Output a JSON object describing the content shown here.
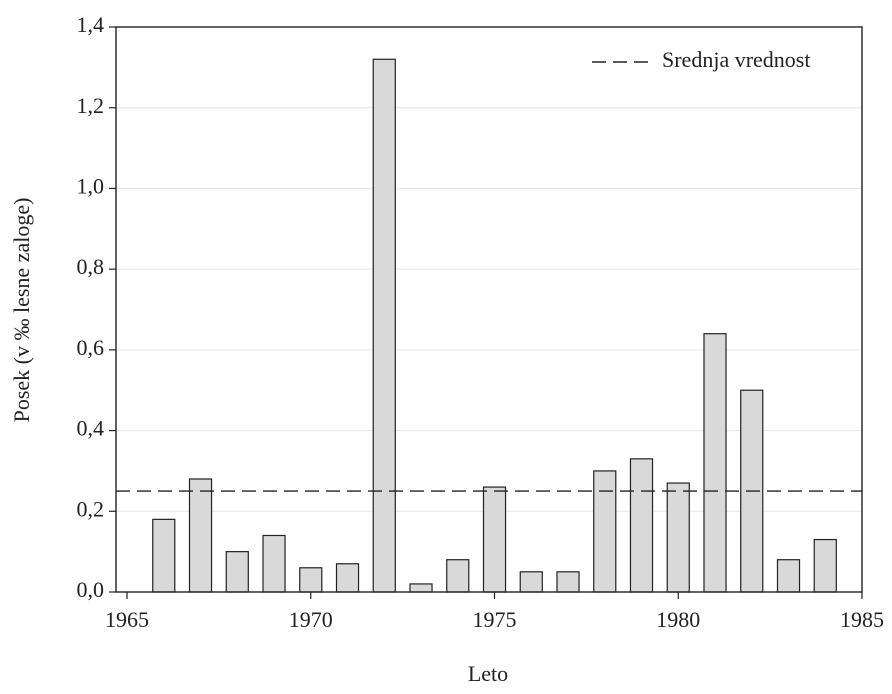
{
  "chart_data": {
    "type": "bar",
    "x_label": "Leto",
    "y_label": "Posek (v ‰ lesne zaloge)",
    "x": [
      1966,
      1967,
      1968,
      1969,
      1970,
      1971,
      1972,
      1973,
      1974,
      1975,
      1976,
      1977,
      1978,
      1979,
      1980,
      1981,
      1982,
      1983,
      1984
    ],
    "values": [
      0.18,
      0.28,
      0.1,
      0.14,
      0.06,
      0.07,
      1.32,
      0.02,
      0.08,
      0.26,
      0.05,
      0.05,
      0.3,
      0.33,
      0.27,
      0.64,
      0.5,
      0.08,
      0.13
    ],
    "color": "#d9d9d9",
    "mean": {
      "name": "Srednja vrednost",
      "value": 0.25
    },
    "xlim": [
      1964.7,
      1985
    ],
    "xticks": [
      1965,
      1970,
      1975,
      1980,
      1985
    ],
    "ylim": [
      0,
      1.4
    ],
    "yticks": [
      {
        "value": 0,
        "label": "0,0"
      },
      {
        "value": 0.2,
        "label": "0,2"
      },
      {
        "value": 0.4,
        "label": "0,4"
      },
      {
        "value": 0.6,
        "label": "0,6"
      },
      {
        "value": 0.8,
        "label": "0,8"
      },
      {
        "value": 1.0,
        "label": "1,0"
      },
      {
        "value": 1.2,
        "label": "1,2"
      },
      {
        "value": 1.4,
        "label": "1,4"
      }
    ],
    "grid": true,
    "legend": "upper right"
  }
}
